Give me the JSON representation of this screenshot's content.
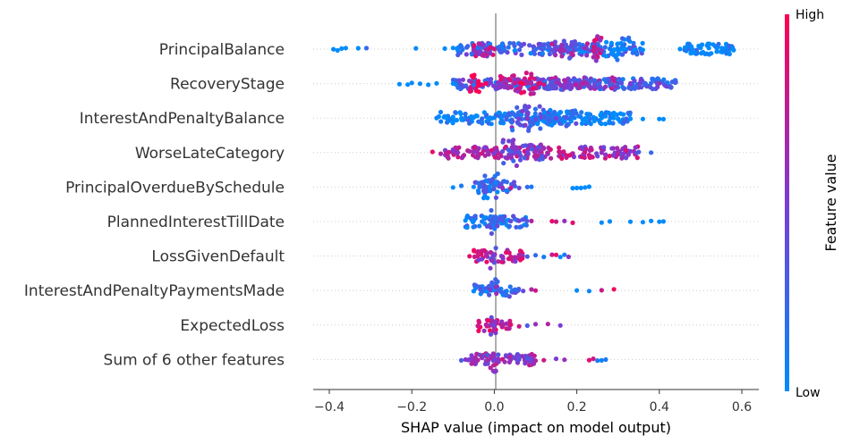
{
  "chart_data": {
    "type": "scatter",
    "subtype": "shap-beeswarm",
    "xlabel": "SHAP value (impact on model output)",
    "xlim": [
      -0.43,
      0.63
    ],
    "xticks": [
      -0.4,
      -0.2,
      0.0,
      0.2,
      0.4,
      0.6
    ],
    "xtick_labels": [
      "−0.4",
      "−0.2",
      "0.0",
      "0.2",
      "0.4",
      "0.6"
    ],
    "colorbar": {
      "label": "Feature value",
      "high_label": "High",
      "low_label": "Low",
      "low_color": "#008bfb",
      "high_color": "#ff0052"
    },
    "features": [
      {
        "name": "PrincipalBalance",
        "points": [
          [
            -0.39,
            0
          ],
          [
            -0.38,
            0
          ],
          [
            -0.37,
            0
          ],
          [
            -0.36,
            0
          ],
          [
            -0.33,
            0
          ],
          [
            -0.31,
            0.2
          ],
          [
            -0.19,
            0
          ],
          [
            -0.12,
            0
          ],
          [
            -0.1,
            0
          ],
          [
            -0.09,
            0
          ],
          [
            -0.05,
            0.6
          ],
          [
            -0.02,
            0.7
          ],
          [
            0.0,
            0.8
          ],
          [
            0.02,
            0.1
          ],
          [
            0.05,
            0
          ],
          [
            0.1,
            0.2
          ],
          [
            0.14,
            0.4
          ],
          [
            0.15,
            0.5
          ],
          [
            0.16,
            0.7
          ],
          [
            0.17,
            0.6
          ],
          [
            0.18,
            0.3
          ],
          [
            0.2,
            0.2
          ],
          [
            0.22,
            0.6
          ],
          [
            0.24,
            0.8
          ],
          [
            0.25,
            0.7
          ],
          [
            0.26,
            0.6
          ],
          [
            0.28,
            0.1
          ],
          [
            0.29,
            0
          ],
          [
            0.31,
            0
          ],
          [
            0.34,
            0
          ],
          [
            0.36,
            0
          ],
          [
            0.45,
            0
          ],
          [
            0.48,
            0
          ],
          [
            0.5,
            0
          ],
          [
            0.52,
            0
          ],
          [
            0.54,
            0
          ],
          [
            0.56,
            0
          ],
          [
            0.58,
            0
          ]
        ],
        "bands": [
          {
            "x0": -0.09,
            "x1": 0.36,
            "w": 0.45,
            "c": 0.25
          },
          {
            "x0": 0.14,
            "x1": 0.2,
            "w": 0.7,
            "c": 0.55
          },
          {
            "x0": 0.22,
            "x1": 0.26,
            "w": 1.0,
            "c": 0.7
          },
          {
            "x0": 0.27,
            "x1": 0.33,
            "w": 0.9,
            "c": 0.05
          },
          {
            "x0": -0.05,
            "x1": 0.0,
            "w": 0.6,
            "c": 0.7
          },
          {
            "x0": 0.46,
            "x1": 0.58,
            "w": 0.4,
            "c": 0.0
          }
        ]
      },
      {
        "name": "RecoveryStage",
        "points": [
          [
            -0.23,
            0
          ],
          [
            -0.21,
            0
          ],
          [
            -0.2,
            0
          ],
          [
            -0.18,
            0
          ],
          [
            -0.16,
            0
          ],
          [
            -0.14,
            0
          ],
          [
            -0.1,
            0
          ],
          [
            -0.08,
            0.4
          ],
          [
            -0.05,
            0.2
          ],
          [
            -0.03,
            0.9
          ],
          [
            -0.01,
            0.5
          ],
          [
            0.05,
            0.8
          ],
          [
            0.08,
            0.7
          ],
          [
            0.11,
            0.9
          ],
          [
            0.12,
            0.8
          ],
          [
            0.15,
            0.6
          ],
          [
            0.18,
            0.5
          ],
          [
            0.22,
            0.7
          ],
          [
            0.28,
            0.3
          ],
          [
            0.33,
            0.5
          ],
          [
            0.38,
            0.2
          ],
          [
            0.4,
            0.6
          ],
          [
            0.42,
            0.1
          ],
          [
            0.44,
            0.3
          ]
        ],
        "bands": [
          {
            "x0": -0.1,
            "x1": 0.44,
            "w": 0.4,
            "c": 0.3
          },
          {
            "x0": -0.06,
            "x1": -0.02,
            "w": 0.8,
            "c": 0.95
          },
          {
            "x0": 0.06,
            "x1": 0.11,
            "w": 1.0,
            "c": 0.85
          },
          {
            "x0": 0.0,
            "x1": 0.06,
            "w": 0.6,
            "c": 0.7
          },
          {
            "x0": 0.12,
            "x1": 0.3,
            "w": 0.45,
            "c": 0.5
          }
        ]
      },
      {
        "name": "InterestAndPenaltyBalance",
        "points": [
          [
            -0.14,
            0.05
          ],
          [
            -0.12,
            0
          ],
          [
            -0.1,
            0
          ],
          [
            -0.07,
            0.1
          ],
          [
            -0.05,
            0
          ],
          [
            0.0,
            0.05
          ],
          [
            0.03,
            0.3
          ],
          [
            0.06,
            0.5
          ],
          [
            0.08,
            0.6
          ],
          [
            0.1,
            0.4
          ],
          [
            0.12,
            0.3
          ],
          [
            0.15,
            0.5
          ],
          [
            0.18,
            0.2
          ],
          [
            0.22,
            0
          ],
          [
            0.26,
            0
          ],
          [
            0.3,
            0
          ],
          [
            0.33,
            0
          ],
          [
            0.36,
            0
          ],
          [
            0.4,
            0
          ],
          [
            0.41,
            0
          ]
        ],
        "bands": [
          {
            "x0": -0.14,
            "x1": 0.33,
            "w": 0.45,
            "c": 0.05
          },
          {
            "x0": 0.04,
            "x1": 0.12,
            "w": 1.0,
            "c": 0.35
          },
          {
            "x0": 0.12,
            "x1": 0.2,
            "w": 0.6,
            "c": 0.2
          }
        ]
      },
      {
        "name": "WorseLateCategory",
        "points": [
          [
            -0.15,
            0.9
          ],
          [
            -0.13,
            0.7
          ],
          [
            -0.11,
            0.8
          ],
          [
            -0.09,
            0.6
          ],
          [
            -0.06,
            0.7
          ],
          [
            -0.03,
            0.8
          ],
          [
            0.0,
            0.5
          ],
          [
            0.02,
            0.4
          ],
          [
            0.04,
            0.3
          ],
          [
            0.06,
            0.35
          ],
          [
            0.08,
            0.5
          ],
          [
            0.1,
            0.6
          ],
          [
            0.13,
            0.7
          ],
          [
            0.16,
            0.8
          ],
          [
            0.19,
            0.7
          ],
          [
            0.22,
            0.8
          ],
          [
            0.26,
            0.6
          ],
          [
            0.3,
            0.7
          ],
          [
            0.33,
            0.5
          ],
          [
            0.35,
            0.3
          ],
          [
            0.38,
            0.2
          ]
        ],
        "bands": [
          {
            "x0": -0.12,
            "x1": 0.35,
            "w": 0.45,
            "c": 0.65
          },
          {
            "x0": 0.02,
            "x1": 0.06,
            "w": 1.0,
            "c": 0.35
          },
          {
            "x0": 0.06,
            "x1": 0.12,
            "w": 0.6,
            "c": 0.5
          }
        ]
      },
      {
        "name": "PrincipalOverdueBySchedule",
        "points": [
          [
            -0.1,
            0
          ],
          [
            -0.08,
            0.1
          ],
          [
            -0.05,
            0
          ],
          [
            -0.02,
            0.3
          ],
          [
            0.0,
            0.2
          ],
          [
            0.02,
            0.6
          ],
          [
            0.04,
            0.8
          ],
          [
            0.06,
            0.4
          ],
          [
            0.08,
            0.2
          ],
          [
            0.09,
            0.1
          ],
          [
            0.19,
            0
          ],
          [
            0.2,
            0
          ],
          [
            0.21,
            0
          ],
          [
            0.22,
            0
          ],
          [
            0.23,
            0
          ]
        ],
        "bands": [
          {
            "x0": -0.05,
            "x1": 0.05,
            "w": 0.45,
            "c": 0.2
          },
          {
            "x0": -0.03,
            "x1": 0.01,
            "w": 1.0,
            "c": 0.15
          }
        ]
      },
      {
        "name": "PlannedInterestTillDate",
        "points": [
          [
            -0.07,
            0
          ],
          [
            -0.05,
            0.05
          ],
          [
            -0.03,
            0.1
          ],
          [
            0.0,
            0.2
          ],
          [
            0.02,
            0.3
          ],
          [
            0.04,
            0.4
          ],
          [
            0.06,
            0.5
          ],
          [
            0.09,
            0.7
          ],
          [
            0.14,
            0.9
          ],
          [
            0.15,
            0.8
          ],
          [
            0.17,
            0.6
          ],
          [
            0.19,
            0.9
          ],
          [
            0.26,
            0
          ],
          [
            0.28,
            0
          ],
          [
            0.33,
            0
          ],
          [
            0.36,
            0
          ],
          [
            0.38,
            0
          ],
          [
            0.4,
            0
          ],
          [
            0.41,
            0
          ]
        ],
        "bands": [
          {
            "x0": -0.07,
            "x1": 0.08,
            "w": 0.45,
            "c": 0.15
          },
          {
            "x0": -0.01,
            "x1": 0.01,
            "w": 1.0,
            "c": 0.3
          }
        ]
      },
      {
        "name": "LossGivenDefault",
        "points": [
          [
            -0.06,
            0.9
          ],
          [
            -0.04,
            0.8
          ],
          [
            -0.02,
            0.7
          ],
          [
            0.0,
            0.5
          ],
          [
            0.02,
            0.6
          ],
          [
            0.04,
            0.8
          ],
          [
            0.06,
            0.7
          ],
          [
            0.08,
            0.3
          ],
          [
            0.1,
            0.2
          ],
          [
            0.12,
            0.1
          ],
          [
            0.14,
            0.8
          ],
          [
            0.15,
            0.9
          ],
          [
            0.16,
            0.0
          ],
          [
            0.17,
            0.1
          ],
          [
            0.18,
            0.6
          ]
        ],
        "bands": [
          {
            "x0": -0.05,
            "x1": 0.07,
            "w": 0.45,
            "c": 0.7
          },
          {
            "x0": -0.01,
            "x1": 0.01,
            "w": 1.0,
            "c": 0.5
          }
        ]
      },
      {
        "name": "InterestAndPenaltyPaymentsMade",
        "points": [
          [
            -0.05,
            0
          ],
          [
            -0.03,
            0.2
          ],
          [
            -0.01,
            0.5
          ],
          [
            0.01,
            0.3
          ],
          [
            0.03,
            0.1
          ],
          [
            0.05,
            0.2
          ],
          [
            0.07,
            0.4
          ],
          [
            0.09,
            0.7
          ],
          [
            0.1,
            0.8
          ],
          [
            0.2,
            0
          ],
          [
            0.23,
            0.05
          ],
          [
            0.26,
            0.8
          ],
          [
            0.29,
            0.95
          ]
        ],
        "bands": [
          {
            "x0": -0.05,
            "x1": 0.06,
            "w": 0.45,
            "c": 0.2
          },
          {
            "x0": -0.01,
            "x1": 0.01,
            "w": 1.0,
            "c": 0.4
          }
        ]
      },
      {
        "name": "ExpectedLoss",
        "points": [
          [
            -0.04,
            0.8
          ],
          [
            -0.02,
            0.7
          ],
          [
            0.0,
            0.5
          ],
          [
            0.02,
            0.7
          ],
          [
            0.04,
            0.9
          ],
          [
            0.06,
            0.8
          ],
          [
            0.08,
            0.3
          ],
          [
            0.1,
            0.6
          ],
          [
            0.13,
            0.7
          ],
          [
            0.16,
            0.5
          ]
        ],
        "bands": [
          {
            "x0": -0.04,
            "x1": 0.04,
            "w": 0.45,
            "c": 0.75
          },
          {
            "x0": -0.01,
            "x1": 0.01,
            "w": 1.0,
            "c": 0.5
          }
        ]
      },
      {
        "name": "Sum of 6 other features",
        "points": [
          [
            -0.08,
            0.3
          ],
          [
            -0.06,
            0.5
          ],
          [
            -0.04,
            0.7
          ],
          [
            -0.02,
            0.6
          ],
          [
            0.0,
            0.5
          ],
          [
            0.02,
            0.8
          ],
          [
            0.04,
            0.6
          ],
          [
            0.06,
            0.4
          ],
          [
            0.08,
            0.3
          ],
          [
            0.1,
            0.7
          ],
          [
            0.12,
            0.8
          ],
          [
            0.15,
            0.5
          ],
          [
            0.17,
            0.6
          ],
          [
            0.23,
            0.9
          ],
          [
            0.24,
            0.8
          ],
          [
            0.25,
            0.1
          ],
          [
            0.26,
            0.05
          ],
          [
            0.27,
            0.1
          ]
        ],
        "bands": [
          {
            "x0": -0.08,
            "x1": 0.1,
            "w": 0.45,
            "c": 0.55
          },
          {
            "x0": -0.01,
            "x1": 0.01,
            "w": 1.0,
            "c": 0.5
          }
        ]
      }
    ]
  }
}
